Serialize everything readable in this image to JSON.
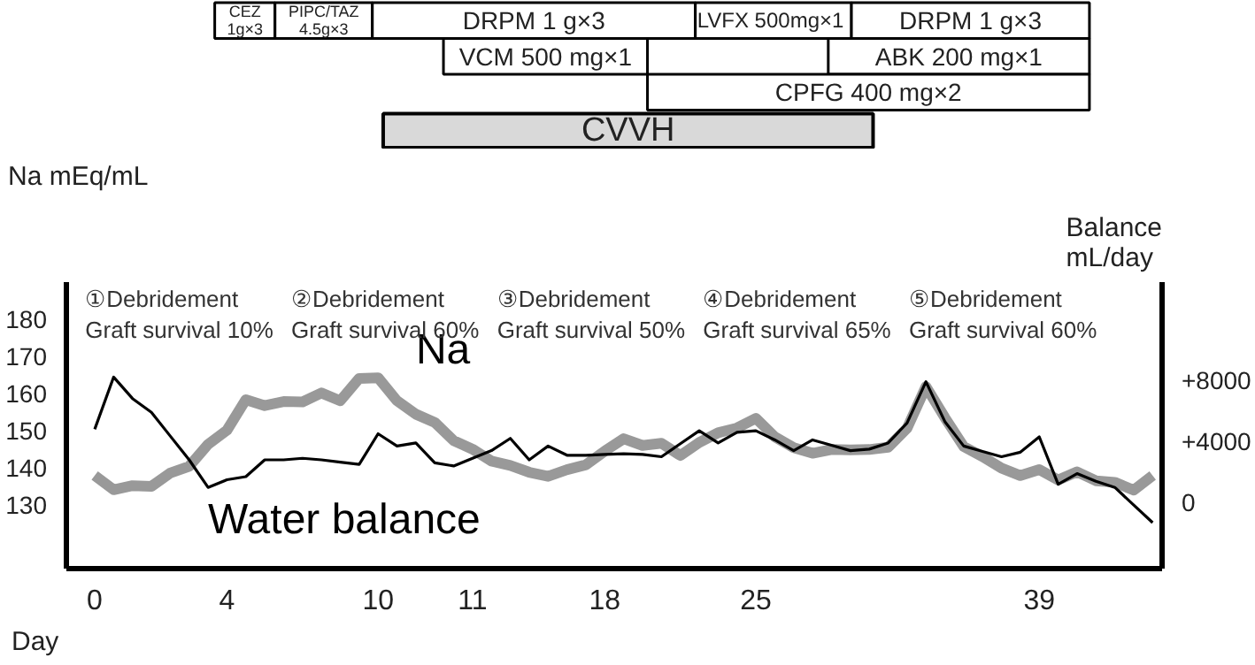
{
  "chart_data": [
    {
      "type": "other",
      "annotations": [
        "CEZ\n1g×3",
        "PIPC/TAZ\n4.5g×3",
        "DRPM 1 g×3",
        "LVFX  500mg×1",
        "DRPM 1 g×3",
        "VCM 500 mg×1",
        "ABK 200 mg×1",
        "CPFG 400 mg×2",
        "CVVH"
      ]
    },
    {
      "type": "line",
      "ylim": [
        113,
        190
      ],
      "y2lim": [
        -4300,
        14400
      ],
      "xlabel": "Day",
      "ylabel": "Na mEq/mL",
      "y2label": "Balance\nmL/day",
      "categories": [
        "0",
        null,
        null,
        null,
        null,
        null,
        null,
        "4",
        null,
        null,
        null,
        null,
        null,
        null,
        null,
        "10",
        null,
        null,
        null,
        null,
        "11",
        null,
        null,
        null,
        null,
        null,
        null,
        "18",
        null,
        null,
        null,
        null,
        null,
        null,
        null,
        "25",
        null,
        null,
        null,
        null,
        null,
        null,
        null,
        null,
        null,
        null,
        null,
        null,
        null,
        null,
        "39",
        null,
        null,
        null,
        null,
        null,
        null
      ],
      "yticks": [
        130,
        140,
        150,
        160,
        170,
        180
      ],
      "y2ticks": [
        {
          "value": 0,
          "label": "0"
        },
        {
          "value": 4000,
          "label": "+4000"
        },
        {
          "value": 8000,
          "label": "+8000"
        }
      ],
      "line_style": "solid",
      "series": [
        {
          "name": "Na",
          "color": "#999999",
          "values": [
            138.0,
            134.2,
            135.3,
            135.1,
            138.7,
            140.5,
            146.4,
            150.2,
            158.4,
            156.8,
            157.9,
            157.8,
            160.2,
            158.1,
            164.1,
            164.3,
            158.1,
            154.5,
            152.3,
            147.4,
            145.1,
            141.9,
            140.7,
            138.9,
            137.8,
            139.6,
            140.9,
            144.6,
            147.9,
            146.1,
            146.7,
            143.4,
            146.9,
            149.5,
            150.8,
            153.4,
            148.4,
            145.5,
            144.0,
            145.0,
            144.9,
            145.0,
            145.6,
            150.7,
            161.9,
            153.6,
            145.8,
            143.1,
            140.0,
            138.0,
            139.6,
            136.8,
            139.0,
            136.6,
            136.2,
            134.1,
            138.0
          ]
        },
        {
          "name": "Water balance",
          "color": "#000000",
          "axis": "y2",
          "values": [
            4800,
            8200,
            6800,
            5900,
            4350,
            2800,
            1000,
            1500,
            1700,
            2800,
            2800,
            2900,
            2800,
            2650,
            2500,
            4500,
            3700,
            3900,
            2600,
            2400,
            2900,
            3400,
            4200,
            2800,
            3700,
            3100,
            3100,
            3150,
            3200,
            3150,
            3000,
            3850,
            4700,
            3900,
            4600,
            4700,
            4100,
            3400,
            4100,
            3750,
            3400,
            3500,
            3900,
            5200,
            7900,
            5300,
            3700,
            3350,
            3000,
            3300,
            4300,
            1200,
            1900,
            1400,
            1000,
            -150,
            -1300
          ]
        }
      ],
      "annotations": [
        "①Debridement\nGraft survival 10%",
        "②Debridement\nGraft survival 60%",
        "③Debridement\nGraft survival 50%",
        "④Debridement\nGraft survival 65%",
        "⑤Debridement\nGraft survival 60%"
      ]
    }
  ]
}
